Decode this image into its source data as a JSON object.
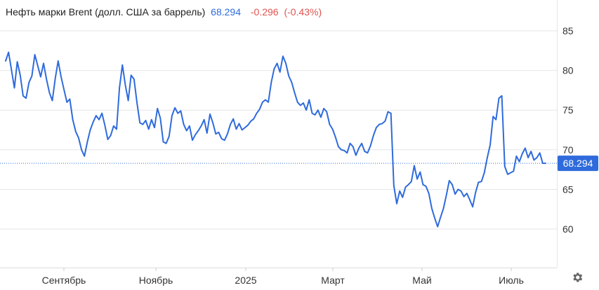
{
  "header": {
    "title": "Нефть марки Brent (долл. США за баррель)",
    "price": "68.294",
    "change": "-0.296",
    "change_pct": "(-0.43%)"
  },
  "colors": {
    "line": "#2f6bdc",
    "price_label_bg": "#2f6bdc",
    "negative": "#e0534f",
    "grid": "#e6e6e6"
  },
  "icons": {
    "settings": "gear-icon"
  },
  "chart_data": {
    "type": "line",
    "title": "Нефть марки Brent (долл. США за баррель)",
    "xlabel": "",
    "ylabel": "",
    "ylim": [
      56,
      89
    ],
    "yticks": [
      60,
      65,
      70,
      75,
      80,
      85
    ],
    "ytick_labels": [
      "60",
      "65",
      "70",
      "75",
      "80",
      "85"
    ],
    "xticks": [
      "Сентябрь",
      "Ноябрь",
      "2025",
      "Март",
      "Май",
      "Июль"
    ],
    "grid": true,
    "current_value": 68.294,
    "current_label": "68.294",
    "series": [
      {
        "values": [
          81.2,
          82.3,
          80.1,
          77.8,
          81.1,
          79.4,
          76.8,
          76.5,
          78.5,
          79.3,
          82.0,
          80.6,
          79.2,
          80.9,
          78.9,
          77.2,
          76.2,
          79.0,
          81.2,
          79.2,
          77.6,
          76.0,
          76.4,
          73.8,
          72.3,
          71.5,
          70.0,
          69.2,
          71.0,
          72.5,
          73.5,
          74.3,
          73.8,
          74.6,
          73.1,
          71.3,
          71.8,
          73.0,
          72.6,
          77.8,
          80.7,
          78.2,
          76.2,
          79.4,
          78.9,
          75.9,
          73.4,
          73.2,
          73.7,
          72.6,
          73.8,
          72.8,
          75.2,
          74.0,
          71.0,
          70.8,
          71.7,
          74.3,
          75.3,
          74.6,
          74.9,
          73.2,
          72.4,
          73.0,
          71.2,
          71.9,
          72.4,
          73.0,
          73.8,
          72.1,
          74.5,
          73.4,
          72.0,
          72.2,
          71.4,
          71.2,
          72.0,
          73.2,
          73.9,
          72.6,
          73.3,
          72.5,
          72.8,
          73.1,
          73.6,
          73.9,
          74.6,
          75.1,
          76.0,
          76.3,
          76.0,
          78.5,
          80.2,
          80.9,
          79.8,
          81.8,
          80.9,
          79.3,
          78.5,
          77.2,
          76.0,
          75.6,
          75.9,
          75.0,
          76.3,
          74.6,
          74.4,
          75.0,
          74.1,
          75.2,
          74.8,
          73.2,
          72.6,
          71.6,
          70.4,
          70.0,
          69.9,
          69.6,
          70.8,
          70.4,
          69.3,
          70.2,
          70.8,
          69.8,
          69.6,
          70.5,
          71.8,
          72.8,
          73.2,
          73.3,
          73.6,
          74.8,
          74.6,
          65.5,
          63.2,
          64.8,
          64.0,
          65.3,
          65.6,
          66.0,
          68.0,
          66.3,
          67.2,
          65.6,
          65.4,
          64.5,
          62.6,
          61.4,
          60.3,
          61.5,
          62.6,
          64.3,
          66.1,
          65.6,
          64.4,
          65.0,
          64.8,
          64.1,
          64.5,
          63.7,
          62.8,
          64.6,
          65.9,
          66.0,
          67.1,
          69.0,
          70.6,
          74.2,
          73.8,
          76.5,
          76.8,
          67.9,
          66.9,
          67.1,
          67.3,
          69.2,
          68.5,
          69.5,
          70.2,
          69.0,
          69.8,
          68.7,
          69.0,
          69.6,
          68.3,
          68.294
        ]
      }
    ]
  }
}
